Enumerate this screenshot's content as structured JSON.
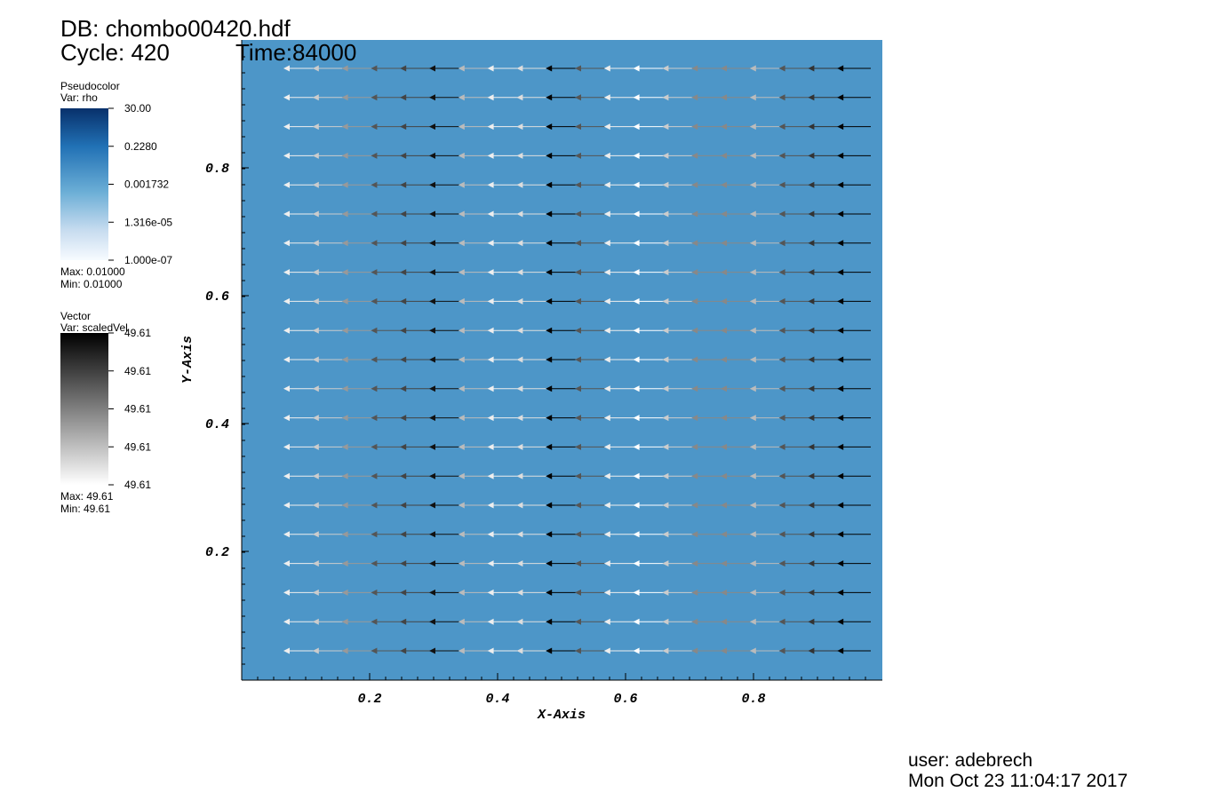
{
  "header": {
    "db": "DB: chombo00420.hdf",
    "cycle": "Cycle: 420",
    "time": "Time:84000"
  },
  "legends": [
    {
      "title": "Pseudocolor",
      "var": "Var: rho",
      "labels": [
        "30.00",
        "0.2280",
        "0.001732",
        "1.316e-05",
        "1.000e-07"
      ],
      "max": "Max:  0.01000",
      "min": "Min:  0.01000"
    },
    {
      "title": "Vector",
      "var": "Var: scaledVel",
      "labels": [
        "49.61",
        "49.61",
        "49.61",
        "49.61",
        "49.61"
      ],
      "max": "Max:  49.61",
      "min": "Min:  49.61"
    }
  ],
  "x_axis": {
    "label": "X-Axis",
    "ticks": [
      0.2,
      0.4,
      0.6,
      0.8
    ]
  },
  "y_axis": {
    "label": "Y-Axis",
    "ticks": [
      0.2,
      0.4,
      0.6,
      0.8
    ]
  },
  "footer": {
    "user": "user: adebrech",
    "date": "Mon Oct 23 11:04:17 2017"
  }
}
